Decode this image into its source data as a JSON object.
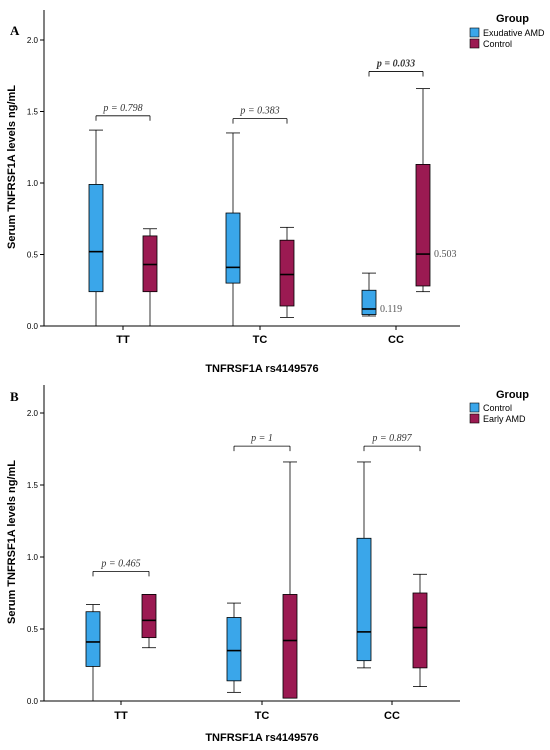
{
  "chart_data": [
    {
      "type": "boxplot",
      "panel_label": "A",
      "xlabel": "TNFRSF1A rs4149576",
      "ylabel": "Serum TNFRSF1A levels ng/mL",
      "ylim": [
        0,
        2.15
      ],
      "yticks": [
        "0.0",
        "0.5",
        "1.0",
        "1.5",
        "2.0"
      ],
      "categories": [
        "TT",
        "TC",
        "CC"
      ],
      "legend": {
        "title": "Group",
        "position": "top-right",
        "entries": [
          {
            "name": "Exudative AMD",
            "color": "#3aa6ea"
          },
          {
            "name": "Control",
            "color": "#9b1a52"
          }
        ]
      },
      "series": [
        {
          "name": "Exudative AMD",
          "color": "#3aa6ea",
          "boxes": [
            {
              "category": "TT",
              "min": 0.0,
              "q1": 0.24,
              "median": 0.52,
              "q3": 0.99,
              "max": 1.37
            },
            {
              "category": "TC",
              "min": 0.0,
              "q1": 0.3,
              "median": 0.41,
              "q3": 0.79,
              "max": 1.35
            },
            {
              "category": "CC",
              "min": 0.07,
              "q1": 0.08,
              "median": 0.119,
              "q3": 0.25,
              "max": 0.37
            }
          ]
        },
        {
          "name": "Control",
          "color": "#9b1a52",
          "boxes": [
            {
              "category": "TT",
              "min": 0.0,
              "q1": 0.24,
              "median": 0.43,
              "q3": 0.63,
              "max": 0.68
            },
            {
              "category": "TC",
              "min": 0.06,
              "q1": 0.14,
              "median": 0.36,
              "q3": 0.6,
              "max": 0.69
            },
            {
              "category": "CC",
              "min": 0.24,
              "q1": 0.28,
              "median": 0.503,
              "q3": 1.13,
              "max": 1.66
            }
          ]
        }
      ],
      "annotations": [
        {
          "category": "TT",
          "text": "p = 0.798",
          "y": 1.47,
          "bold": false
        },
        {
          "category": "TC",
          "text": "p = 0.383",
          "y": 1.45,
          "bold": false
        },
        {
          "category": "CC",
          "text": "p = 0.033",
          "y": 1.78,
          "bold": true
        }
      ],
      "value_labels": [
        {
          "category": "CC",
          "series": "Exudative AMD",
          "text": "0.119",
          "y": 0.119
        },
        {
          "category": "CC",
          "series": "Control",
          "text": "0.503",
          "y": 0.503
        }
      ]
    },
    {
      "type": "boxplot",
      "panel_label": "B",
      "xlabel": "TNFRSF1A rs4149576",
      "ylabel": "Serum TNFRSF1A levels ng/mL",
      "ylim": [
        0,
        2.15
      ],
      "yticks": [
        "0.0",
        "0.5",
        "1.0",
        "1.5",
        "2.0"
      ],
      "categories": [
        "TT",
        "TC",
        "CC"
      ],
      "legend": {
        "title": "Group",
        "position": "top-right",
        "entries": [
          {
            "name": "Control",
            "color": "#3aa6ea"
          },
          {
            "name": "Early AMD",
            "color": "#9b1a52"
          }
        ]
      },
      "series": [
        {
          "name": "Control",
          "color": "#3aa6ea",
          "boxes": [
            {
              "category": "TT",
              "min": 0.0,
              "q1": 0.24,
              "median": 0.41,
              "q3": 0.62,
              "max": 0.67
            },
            {
              "category": "TC",
              "min": 0.06,
              "q1": 0.14,
              "median": 0.35,
              "q3": 0.58,
              "max": 0.68
            },
            {
              "category": "CC",
              "min": 0.23,
              "q1": 0.28,
              "median": 0.48,
              "q3": 1.13,
              "max": 1.66
            }
          ]
        },
        {
          "name": "Early AMD",
          "color": "#9b1a52",
          "boxes": [
            {
              "category": "TT",
              "min": 0.37,
              "q1": 0.44,
              "median": 0.56,
              "q3": 0.74,
              "max": 0.74
            },
            {
              "category": "TC",
              "min": 0.02,
              "q1": 0.02,
              "median": 0.42,
              "q3": 0.74,
              "max": 1.66
            },
            {
              "category": "CC",
              "min": 0.1,
              "q1": 0.23,
              "median": 0.51,
              "q3": 0.75,
              "max": 0.88
            }
          ]
        }
      ],
      "annotations": [
        {
          "category": "TT",
          "text": "p = 0.465",
          "y": 0.9,
          "bold": false
        },
        {
          "category": "TC",
          "text": "p = 1",
          "y": 1.77,
          "bold": false
        },
        {
          "category": "CC",
          "text": "p = 0.897",
          "y": 1.77,
          "bold": false
        }
      ],
      "value_labels": []
    }
  ]
}
